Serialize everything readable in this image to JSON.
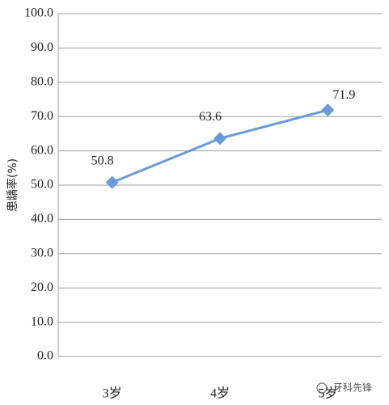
{
  "chart_data": {
    "type": "line",
    "y_label": "患龋率(%)",
    "categories": [
      "3岁",
      "4岁",
      "5岁"
    ],
    "series": [
      {
        "name": "患龋率",
        "color": "#6a9bd6",
        "values": [
          50.8,
          63.6,
          71.9
        ]
      }
    ],
    "ylim": [
      0,
      100
    ],
    "yticks": [
      {
        "value": 0,
        "label": "0.0"
      },
      {
        "value": 10,
        "label": "10.0"
      },
      {
        "value": 20,
        "label": "20.0"
      },
      {
        "value": 30,
        "label": "30.0"
      },
      {
        "value": 40,
        "label": "40.0"
      },
      {
        "value": 50,
        "label": "50.0"
      },
      {
        "value": 60,
        "label": "60.0"
      },
      {
        "value": 70,
        "label": "70.0"
      },
      {
        "value": 80,
        "label": "80.0"
      },
      {
        "value": 90,
        "label": "90.0"
      },
      {
        "value": 100,
        "label": "100.0"
      }
    ],
    "grid": true,
    "watermark": "牙科先锋"
  }
}
